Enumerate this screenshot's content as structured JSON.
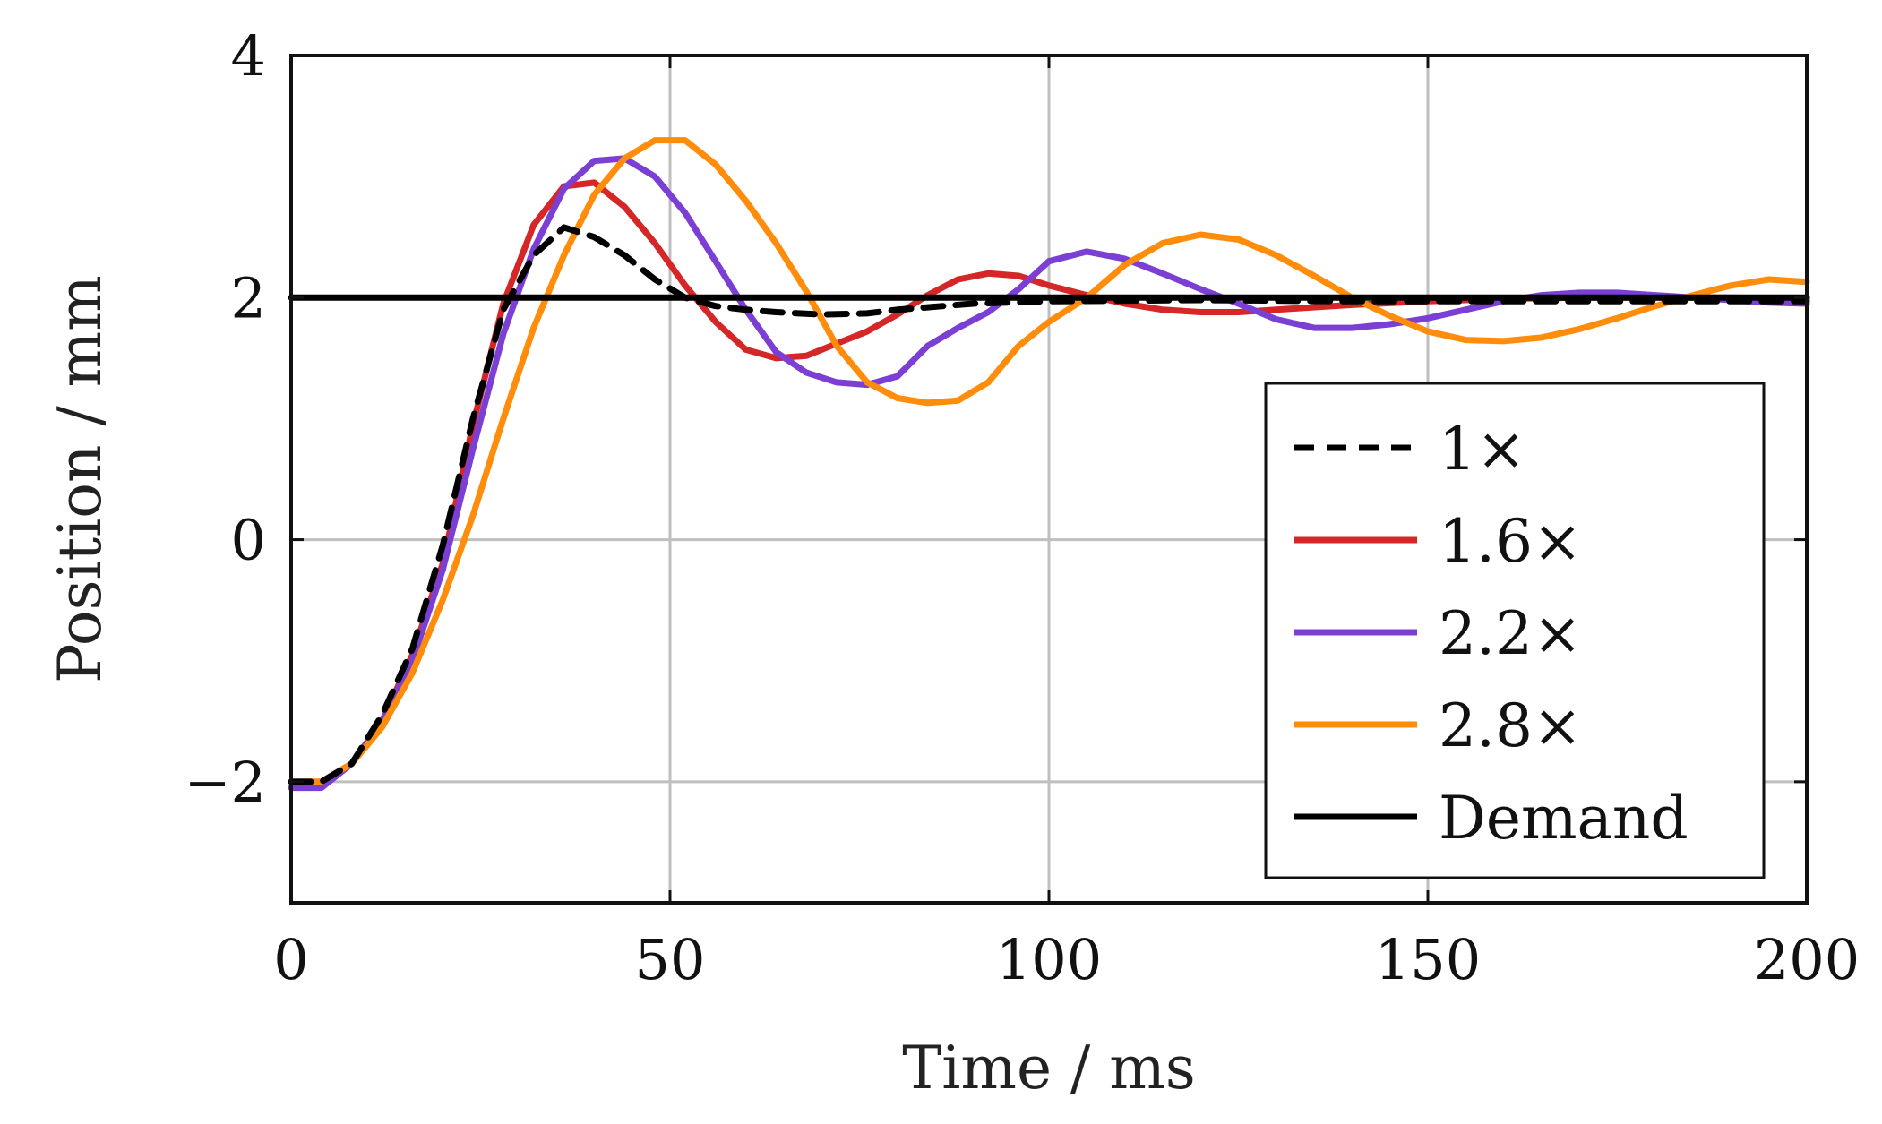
{
  "chart_data": {
    "type": "line",
    "title": "",
    "xlabel": "Time / ms",
    "ylabel": "Position / mm",
    "xlim": [
      0,
      200
    ],
    "ylim": [
      -3,
      4
    ],
    "xticks": [
      0,
      50,
      100,
      150,
      200
    ],
    "xtick_labels": [
      "0",
      "50",
      "100",
      "150",
      "200"
    ],
    "yticks": [
      -2,
      0,
      2,
      4
    ],
    "ytick_labels": [
      "−2",
      "0",
      "2",
      "4"
    ],
    "grid": true,
    "legend_position": "right",
    "series": [
      {
        "name": "1×",
        "color": "#000000",
        "dash": "dashed",
        "x": [
          0,
          4,
          8,
          12,
          16,
          20,
          24,
          28,
          32,
          36,
          40,
          44,
          48,
          52,
          56,
          60,
          64,
          70,
          76,
          80,
          90,
          100,
          120,
          140,
          160,
          180,
          200
        ],
        "y": [
          -2.0,
          -2.0,
          -1.85,
          -1.45,
          -0.9,
          -0.05,
          1.0,
          1.9,
          2.35,
          2.58,
          2.5,
          2.35,
          2.15,
          2.0,
          1.93,
          1.9,
          1.88,
          1.86,
          1.87,
          1.9,
          1.95,
          1.97,
          1.98,
          1.97,
          1.97,
          1.97,
          1.97
        ]
      },
      {
        "name": "1.6×",
        "color": "#d62728",
        "dash": "solid",
        "x": [
          0,
          4,
          8,
          12,
          16,
          20,
          24,
          28,
          32,
          36,
          40,
          44,
          48,
          52,
          56,
          60,
          64,
          68,
          72,
          76,
          80,
          84,
          88,
          92,
          96,
          100,
          105,
          110,
          115,
          120,
          125,
          130,
          140,
          150,
          160,
          170,
          180,
          190,
          200
        ],
        "y": [
          -2.0,
          -2.0,
          -1.85,
          -1.5,
          -0.95,
          -0.2,
          0.95,
          1.95,
          2.6,
          2.92,
          2.95,
          2.75,
          2.45,
          2.1,
          1.8,
          1.57,
          1.5,
          1.52,
          1.62,
          1.72,
          1.86,
          2.02,
          2.15,
          2.2,
          2.18,
          2.1,
          2.02,
          1.95,
          1.9,
          1.88,
          1.88,
          1.9,
          1.94,
          1.97,
          1.99,
          2.0,
          2.0,
          2.0,
          1.99
        ]
      },
      {
        "name": "2.2×",
        "color": "#7b3fd4",
        "dash": "solid",
        "x": [
          0,
          4,
          8,
          12,
          16,
          20,
          24,
          28,
          32,
          36,
          40,
          44,
          48,
          52,
          56,
          60,
          64,
          68,
          72,
          76,
          80,
          84,
          88,
          92,
          96,
          100,
          105,
          110,
          115,
          120,
          125,
          130,
          135,
          140,
          145,
          150,
          155,
          160,
          165,
          170,
          175,
          180,
          185,
          190,
          195,
          200
        ],
        "y": [
          -2.05,
          -2.05,
          -1.85,
          -1.5,
          -1.0,
          -0.25,
          0.75,
          1.7,
          2.4,
          2.9,
          3.13,
          3.15,
          3.0,
          2.7,
          2.3,
          1.9,
          1.55,
          1.38,
          1.3,
          1.28,
          1.35,
          1.6,
          1.75,
          1.88,
          2.07,
          2.3,
          2.38,
          2.32,
          2.2,
          2.07,
          1.95,
          1.82,
          1.75,
          1.75,
          1.78,
          1.83,
          1.9,
          1.97,
          2.02,
          2.04,
          2.04,
          2.02,
          2.0,
          1.98,
          1.96,
          1.95
        ]
      },
      {
        "name": "2.8×",
        "color": "#ff8c0a",
        "dash": "solid",
        "x": [
          0,
          4,
          8,
          12,
          16,
          20,
          24,
          28,
          32,
          36,
          40,
          44,
          48,
          52,
          56,
          60,
          64,
          68,
          72,
          76,
          80,
          84,
          88,
          92,
          96,
          100,
          105,
          110,
          115,
          120,
          125,
          130,
          135,
          140,
          145,
          150,
          155,
          160,
          165,
          170,
          175,
          180,
          185,
          190,
          195,
          200
        ],
        "y": [
          -2.0,
          -2.0,
          -1.85,
          -1.55,
          -1.1,
          -0.5,
          0.2,
          1.0,
          1.75,
          2.35,
          2.85,
          3.15,
          3.3,
          3.3,
          3.1,
          2.8,
          2.45,
          2.05,
          1.6,
          1.3,
          1.17,
          1.13,
          1.15,
          1.3,
          1.6,
          1.8,
          2.0,
          2.27,
          2.45,
          2.52,
          2.48,
          2.35,
          2.18,
          2.0,
          1.85,
          1.72,
          1.65,
          1.64,
          1.67,
          1.74,
          1.83,
          1.93,
          2.02,
          2.1,
          2.15,
          2.13
        ]
      },
      {
        "name": "Demand",
        "color": "#000000",
        "dash": "solid",
        "x": [
          0,
          200
        ],
        "y": [
          2.0,
          2.0
        ]
      }
    ]
  }
}
